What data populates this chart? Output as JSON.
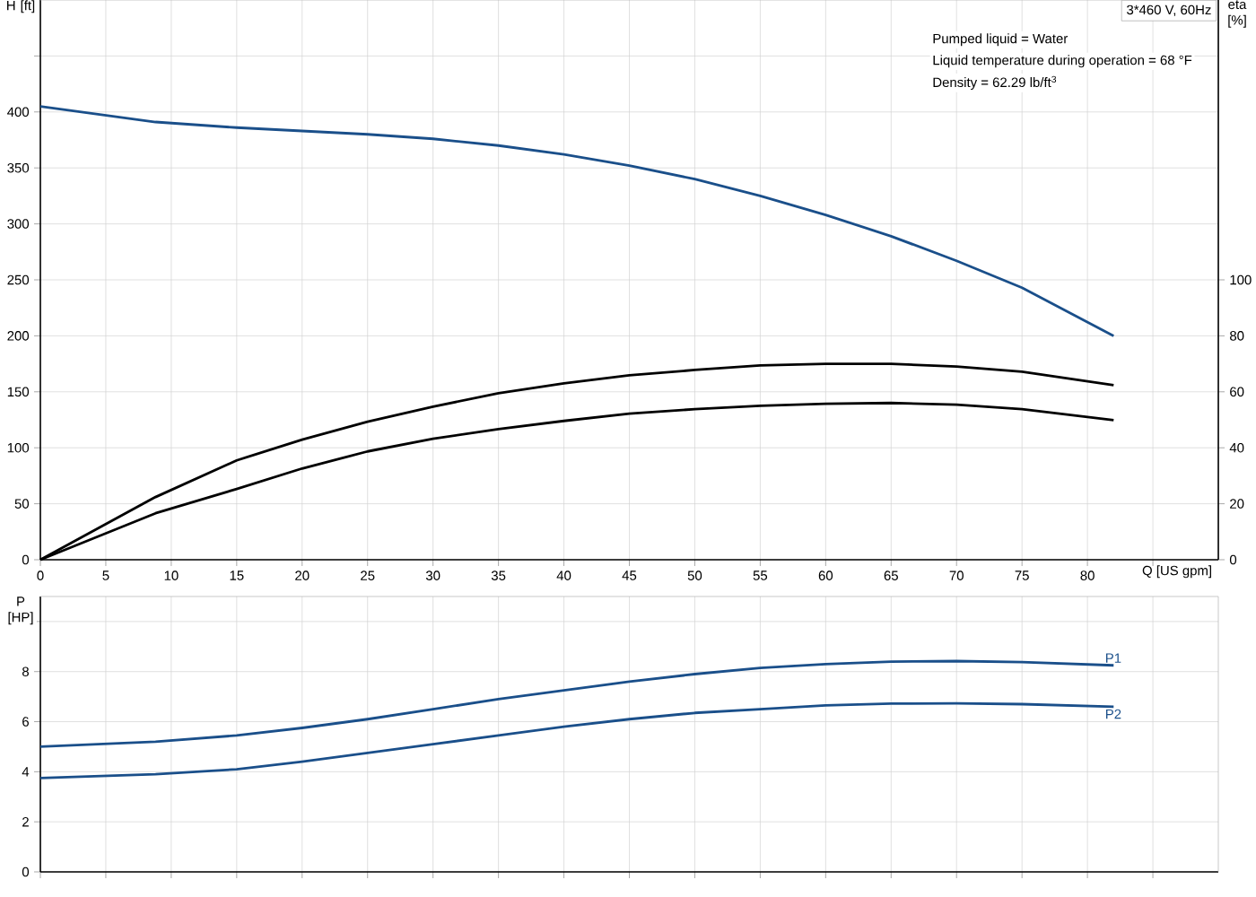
{
  "chart_data": [
    {
      "type": "line",
      "ylabel": "H [ft]",
      "y2label": "eta [%]",
      "xlabel": "Q [US gpm]",
      "annotations": [
        "3*460 V, 60Hz",
        "Pumped liquid = Water",
        "Liquid temperature during operation = 68 °F",
        "Density = 62.29 lb/ft$^{3}$"
      ],
      "x": [
        0,
        8.8,
        15,
        20,
        25,
        30,
        35,
        40,
        45,
        50,
        55,
        60,
        65,
        70,
        75,
        82
      ],
      "series": [
        {
          "color": "#1a4f8a",
          "values": [
            405,
            391,
            386,
            383,
            380,
            376,
            370,
            362,
            352,
            340,
            325,
            308,
            289,
            267,
            243,
            200
          ]
        },
        {
          "color": "#000000",
          "axis": "y2",
          "values": [
            0,
            22.4,
            35.5,
            42.9,
            49.3,
            54.7,
            59.5,
            63,
            65.9,
            67.8,
            69.4,
            70,
            70,
            69,
            67.2,
            62.4
          ]
        },
        {
          "color": "#000000",
          "axis": "y2",
          "values": [
            0,
            16.6,
            25.3,
            32.6,
            38.7,
            43.2,
            46.7,
            49.6,
            52.2,
            53.8,
            55,
            55.7,
            56,
            55.4,
            53.8,
            49.9
          ]
        }
      ],
      "xlim": [
        0,
        90
      ],
      "xticks": [
        0,
        5,
        10,
        15,
        20,
        25,
        30,
        35,
        40,
        45,
        50,
        55,
        60,
        65,
        70,
        75,
        80,
        {
          "value": 85,
          "label": null
        }
      ],
      "ylim": [
        0,
        500
      ],
      "yticks": [
        0,
        50,
        100,
        150,
        200,
        250,
        300,
        350,
        400,
        {
          "value": 450,
          "label": null
        }
      ],
      "y2lim": [
        0,
        200
      ],
      "y2ticks": [
        0,
        20,
        40,
        60,
        80,
        100
      ],
      "grid": true,
      "legend": false,
      "marker": "none",
      "line_style": "solid"
    },
    {
      "type": "line",
      "ylabel": "P [HP]",
      "x": [
        0,
        8.8,
        15,
        20,
        25,
        30,
        35,
        40,
        45,
        50,
        55,
        60,
        65,
        70,
        75,
        82
      ],
      "series": [
        {
          "name": "P1",
          "color": "#1a4f8a",
          "values": [
            5.0,
            5.2,
            5.45,
            5.75,
            6.1,
            6.5,
            6.9,
            7.25,
            7.6,
            7.9,
            8.15,
            8.3,
            8.4,
            8.42,
            8.38,
            8.25
          ]
        },
        {
          "name": "P2",
          "color": "#1a4f8a",
          "values": [
            3.75,
            3.9,
            4.1,
            4.4,
            4.75,
            5.1,
            5.45,
            5.8,
            6.1,
            6.35,
            6.5,
            6.65,
            6.72,
            6.73,
            6.7,
            6.6
          ]
        }
      ],
      "xlim": [
        0,
        90
      ],
      "xticks": [
        0,
        5,
        10,
        15,
        20,
        25,
        30,
        35,
        40,
        45,
        50,
        55,
        60,
        65,
        70,
        75,
        80,
        {
          "value": 85,
          "label": null
        }
      ],
      "ylim": [
        0,
        11
      ],
      "yticks": [
        0,
        2,
        4,
        6,
        8,
        {
          "value": 10,
          "label": null
        }
      ],
      "tick_labels": "y",
      "grid": true,
      "legend": false,
      "marker": "none",
      "line_style": "solid"
    }
  ]
}
